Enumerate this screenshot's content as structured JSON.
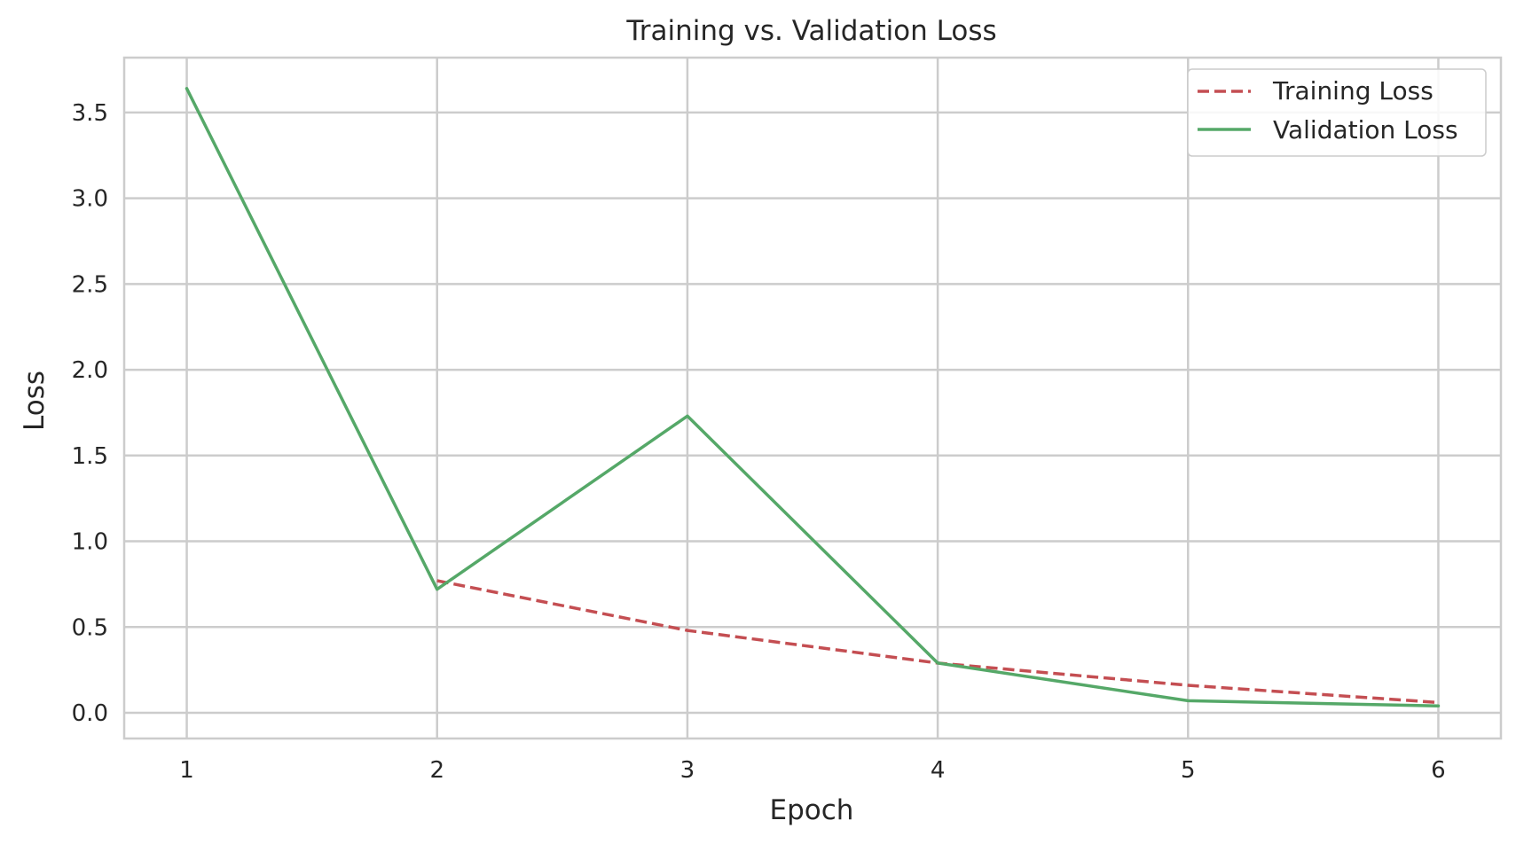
{
  "chart_data": {
    "type": "line",
    "title": "Training vs. Validation Loss",
    "xlabel": "Epoch",
    "ylabel": "Loss",
    "x_ticks": [
      1,
      2,
      3,
      4,
      5,
      6
    ],
    "y_ticks": [
      "0.0",
      "0.5",
      "1.0",
      "1.5",
      "2.0",
      "2.5",
      "3.0",
      "3.5"
    ],
    "xlim": [
      0.75,
      6.25
    ],
    "ylim": [
      -0.15,
      3.82
    ],
    "grid": true,
    "legend_position": "top-right",
    "series": [
      {
        "name": "Training Loss",
        "x": [
          2,
          3,
          4,
          5,
          6
        ],
        "y": [
          0.77,
          0.48,
          0.29,
          0.16,
          0.06
        ],
        "color": "#c44e52",
        "style": "dashed"
      },
      {
        "name": "Validation Loss",
        "x": [
          1,
          2,
          3,
          4,
          5,
          6
        ],
        "y": [
          3.64,
          0.72,
          1.73,
          0.29,
          0.07,
          0.04
        ],
        "color": "#55a868",
        "style": "solid"
      }
    ]
  }
}
